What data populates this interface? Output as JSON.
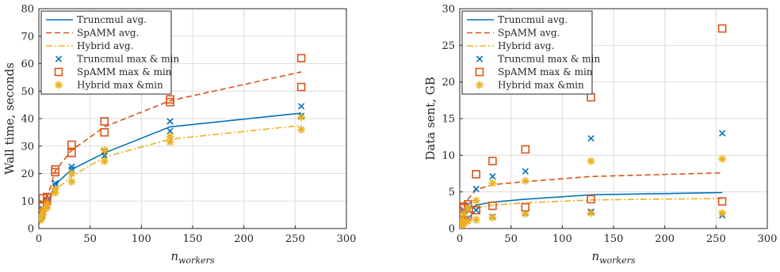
{
  "colors": {
    "truncmul": "#0072BD",
    "spamm": "#D95319",
    "hybrid": "#EDB120",
    "grid": "#dcdcdc",
    "axis": "#262626"
  },
  "legend_labels": [
    "Truncmul avg.",
    "SpAMM avg.",
    "Hybrid avg.",
    "Truncmul max & min",
    "SpAMM max & min",
    "Hybrid max &min"
  ],
  "chart_data": [
    {
      "type": "line",
      "xlabel": "n",
      "xlabel_subscript": "workers",
      "ylabel": "Wall time, seconds",
      "xlim": [
        0,
        300
      ],
      "ylim": [
        0,
        80
      ],
      "xticks": [
        0,
        50,
        100,
        150,
        200,
        250,
        300
      ],
      "yticks": [
        0,
        10,
        20,
        30,
        40,
        50,
        60,
        70,
        80
      ],
      "grid": true,
      "legend_position": "top-left",
      "series": [
        {
          "name": "Truncmul avg.",
          "style": "line",
          "color": "truncmul",
          "x": [
            1,
            2,
            4,
            8,
            16,
            32,
            64,
            128,
            256
          ],
          "y": [
            4.5,
            5,
            6,
            9,
            16,
            21.5,
            27.5,
            37,
            42
          ]
        },
        {
          "name": "SpAMM avg.",
          "style": "dash",
          "color": "spamm",
          "x": [
            1,
            2,
            4,
            8,
            16,
            32,
            64,
            128,
            256
          ],
          "y": [
            5,
            6,
            8,
            11,
            21,
            28.5,
            37,
            46.5,
            57
          ]
        },
        {
          "name": "Hybrid avg.",
          "style": "dashdot",
          "color": "hybrid",
          "x": [
            1,
            2,
            4,
            8,
            16,
            32,
            64,
            128,
            256
          ],
          "y": [
            3.5,
            4,
            6,
            8.5,
            14,
            19,
            26,
            32.5,
            37.5
          ]
        },
        {
          "name": "Truncmul max & min",
          "style": "x",
          "color": "truncmul",
          "x": [
            1,
            1,
            2,
            2,
            4,
            4,
            8,
            8,
            16,
            16,
            32,
            32,
            64,
            64,
            128,
            128,
            256,
            256
          ],
          "y": [
            4.5,
            5,
            5,
            5.5,
            6,
            7,
            8.5,
            10,
            15.5,
            16.5,
            21.5,
            22.5,
            26.5,
            28,
            35.5,
            39,
            41,
            44.5
          ]
        },
        {
          "name": "SpAMM max & min",
          "style": "square",
          "color": "spamm",
          "x": [
            1,
            1,
            2,
            2,
            4,
            4,
            8,
            8,
            16,
            16,
            32,
            32,
            64,
            64,
            128,
            128,
            256,
            256
          ],
          "y": [
            4,
            6,
            5,
            6,
            8,
            11,
            10,
            11.5,
            20.5,
            21.5,
            27.5,
            30.5,
            35,
            39,
            46,
            47,
            51.5,
            62
          ]
        },
        {
          "name": "Hybrid max &min",
          "style": "asterisk",
          "color": "hybrid",
          "x": [
            1,
            1,
            2,
            2,
            4,
            4,
            8,
            8,
            16,
            16,
            32,
            32,
            64,
            64,
            128,
            128,
            256,
            256
          ],
          "y": [
            3,
            4,
            3.5,
            4.5,
            5,
            6.5,
            7.5,
            9,
            13,
            14.5,
            17,
            20,
            24.5,
            28.5,
            31.5,
            33.5,
            36,
            40.5
          ]
        }
      ]
    },
    {
      "type": "line",
      "xlabel": "n",
      "xlabel_subscript": "workers",
      "ylabel": "Data sent, GB",
      "xlim": [
        0,
        300
      ],
      "ylim": [
        0,
        30
      ],
      "xticks": [
        0,
        50,
        100,
        150,
        200,
        250,
        300
      ],
      "yticks": [
        0,
        5,
        10,
        15,
        20,
        25,
        30
      ],
      "grid": true,
      "legend_position": "top-left",
      "series": [
        {
          "name": "Truncmul avg.",
          "style": "line",
          "color": "truncmul",
          "x": [
            1,
            2,
            4,
            8,
            16,
            32,
            64,
            128,
            256
          ],
          "y": [
            0.3,
            1.0,
            1.8,
            2.5,
            3.2,
            3.6,
            4.0,
            4.6,
            4.9
          ]
        },
        {
          "name": "SpAMM avg.",
          "style": "dash",
          "color": "spamm",
          "x": [
            1,
            2,
            4,
            8,
            16,
            32,
            64,
            128,
            256
          ],
          "y": [
            0.5,
            1.3,
            2.6,
            4.0,
            5.3,
            6.0,
            6.4,
            7.1,
            7.6
          ]
        },
        {
          "name": "Hybrid avg.",
          "style": "dashdot",
          "color": "hybrid",
          "x": [
            1,
            2,
            4,
            8,
            16,
            32,
            64,
            128,
            256
          ],
          "y": [
            0.3,
            0.9,
            1.6,
            2.3,
            2.8,
            3.2,
            3.5,
            3.9,
            4.1
          ]
        },
        {
          "name": "Truncmul max & min",
          "style": "x",
          "color": "truncmul",
          "x": [
            1,
            1,
            2,
            2,
            4,
            4,
            8,
            8,
            16,
            16,
            32,
            32,
            64,
            64,
            128,
            128,
            256,
            256
          ],
          "y": [
            0.3,
            0.6,
            0.8,
            1.5,
            1.0,
            2.5,
            1.4,
            3.2,
            2.5,
            5.4,
            1.6,
            7.1,
            2.1,
            7.8,
            2.3,
            12.3,
            1.8,
            13.0
          ]
        },
        {
          "name": "SpAMM max & min",
          "style": "square",
          "color": "spamm",
          "x": [
            1,
            1,
            2,
            2,
            4,
            4,
            8,
            8,
            16,
            16,
            32,
            32,
            64,
            64,
            128,
            128,
            256,
            256
          ],
          "y": [
            0.4,
            0.8,
            1.0,
            2.8,
            1.2,
            3.0,
            1.8,
            3.3,
            2.5,
            7.4,
            3.1,
            9.2,
            2.9,
            10.8,
            4.0,
            17.9,
            3.7,
            27.3
          ]
        },
        {
          "name": "Hybrid max &min",
          "style": "asterisk",
          "color": "hybrid",
          "x": [
            1,
            1,
            2,
            2,
            4,
            4,
            8,
            8,
            16,
            16,
            32,
            32,
            64,
            64,
            128,
            128,
            256,
            256
          ],
          "y": [
            0.2,
            0.5,
            0.5,
            1.2,
            0.7,
            2.0,
            1.0,
            2.8,
            1.2,
            3.8,
            1.5,
            6.2,
            2.0,
            6.5,
            2.1,
            9.2,
            2.1,
            9.5
          ]
        }
      ]
    }
  ]
}
